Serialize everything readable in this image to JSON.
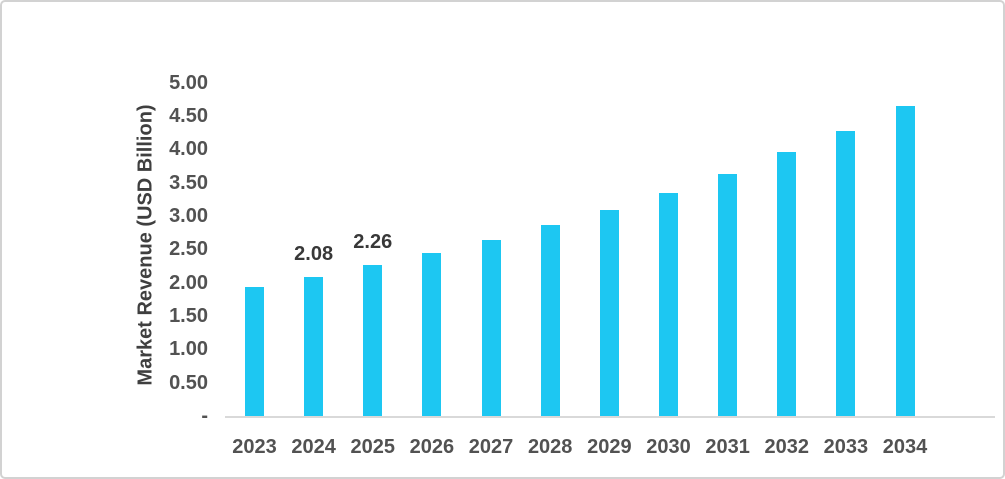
{
  "colors": {
    "bar": "#1dc7f2",
    "axis_line": "#d9d9d9",
    "tick_text": "#525252",
    "title_text": "#3f3f3f",
    "data_label_text": "#383838",
    "border": "#d2d2d2"
  },
  "chart_data": {
    "type": "bar",
    "title": "",
    "xlabel": "",
    "ylabel": "Market Revenue (USD Billion)",
    "categories": [
      "2023",
      "2024",
      "2025",
      "2026",
      "2027",
      "2028",
      "2029",
      "2030",
      "2031",
      "2032",
      "2033",
      "2034"
    ],
    "values": [
      1.93,
      2.08,
      2.26,
      2.45,
      2.64,
      2.87,
      3.09,
      3.34,
      3.63,
      3.96,
      4.28,
      4.65
    ],
    "point_labels": [
      "",
      "2.08",
      "2.26",
      "",
      "",
      "",
      "",
      "",
      "",
      "",
      "",
      ""
    ],
    "ylim": [
      0,
      5
    ],
    "ytick_step": 0.5,
    "ytick_labels": [
      "-",
      "0.50",
      "1.00",
      "1.50",
      "2.00",
      "2.50",
      "3.00",
      "3.50",
      "4.00",
      "4.50",
      "5.00"
    ],
    "grid": false,
    "legend": "none",
    "bar_color_name": "cyan"
  }
}
